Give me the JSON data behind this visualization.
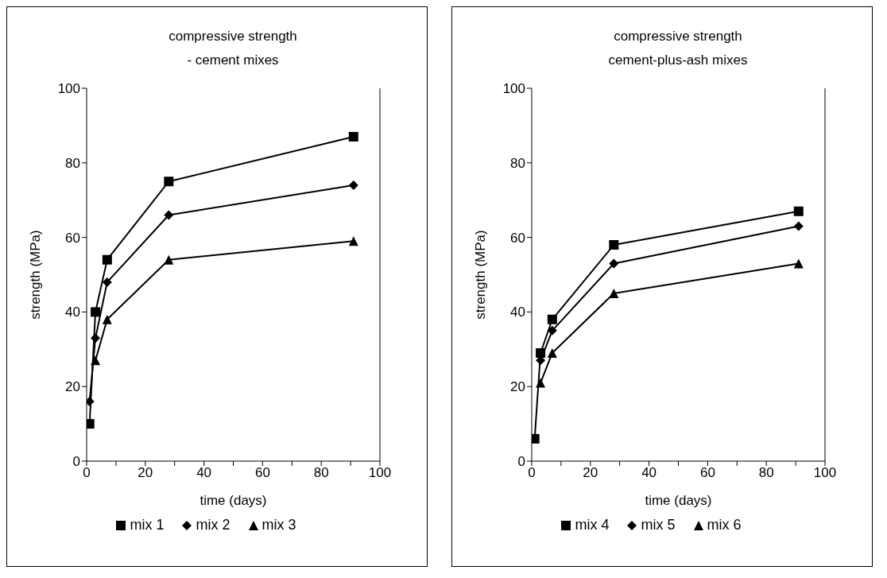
{
  "chart_data": [
    {
      "type": "line",
      "title": "compressive strength",
      "subtitle": "- cement mixes",
      "xlabel": "time (days)",
      "ylabel": "strength (MPa)",
      "x": [
        1,
        3,
        7,
        28,
        91
      ],
      "series": [
        {
          "name": "mix 1",
          "color": "#000000",
          "marker": "square",
          "values": [
            10,
            40,
            54,
            75,
            87
          ]
        },
        {
          "name": "mix 2",
          "color": "#000000",
          "marker": "diamond",
          "values": [
            16,
            33,
            48,
            66,
            74
          ]
        },
        {
          "name": "mix 3",
          "color": "#000000",
          "marker": "triangle",
          "values": [
            null,
            27,
            38,
            54,
            59
          ]
        }
      ],
      "xlim": [
        0,
        100
      ],
      "xticks": [
        0,
        {
          "value": 10,
          "label": null
        },
        20,
        {
          "value": 30,
          "label": null
        },
        40,
        {
          "value": 50,
          "label": null
        },
        60,
        {
          "value": 70,
          "label": null
        },
        80,
        {
          "value": 90,
          "label": null
        },
        100
      ],
      "ylim": [
        0,
        100
      ],
      "yticks": [
        0,
        20,
        40,
        60,
        80,
        100
      ],
      "grid": false,
      "legend": "bottom",
      "line_style": "solid"
    },
    {
      "type": "line",
      "title": "compressive strength",
      "subtitle": "cement-plus-ash mixes",
      "xlabel": "time (days)",
      "ylabel": "strength (MPa)",
      "x": [
        1,
        3,
        7,
        28,
        91
      ],
      "series": [
        {
          "name": "mix 4",
          "color": "#000000",
          "marker": "square",
          "values": [
            6,
            29,
            38,
            58,
            67
          ]
        },
        {
          "name": "mix 5",
          "color": "#000000",
          "marker": "diamond",
          "values": [
            null,
            27,
            35,
            53,
            63
          ]
        },
        {
          "name": "mix 6",
          "color": "#000000",
          "marker": "triangle",
          "values": [
            null,
            21,
            29,
            45,
            53
          ]
        }
      ],
      "xlim": [
        0,
        100
      ],
      "xticks": [
        0,
        {
          "value": 10,
          "label": null
        },
        20,
        {
          "value": 30,
          "label": null
        },
        40,
        {
          "value": 50,
          "label": null
        },
        60,
        {
          "value": 70,
          "label": null
        },
        80,
        {
          "value": 90,
          "label": null
        },
        100
      ],
      "ylim": [
        0,
        100
      ],
      "yticks": [
        0,
        20,
        40,
        60,
        80,
        100
      ],
      "grid": false,
      "legend": "bottom",
      "line_style": "solid"
    }
  ]
}
